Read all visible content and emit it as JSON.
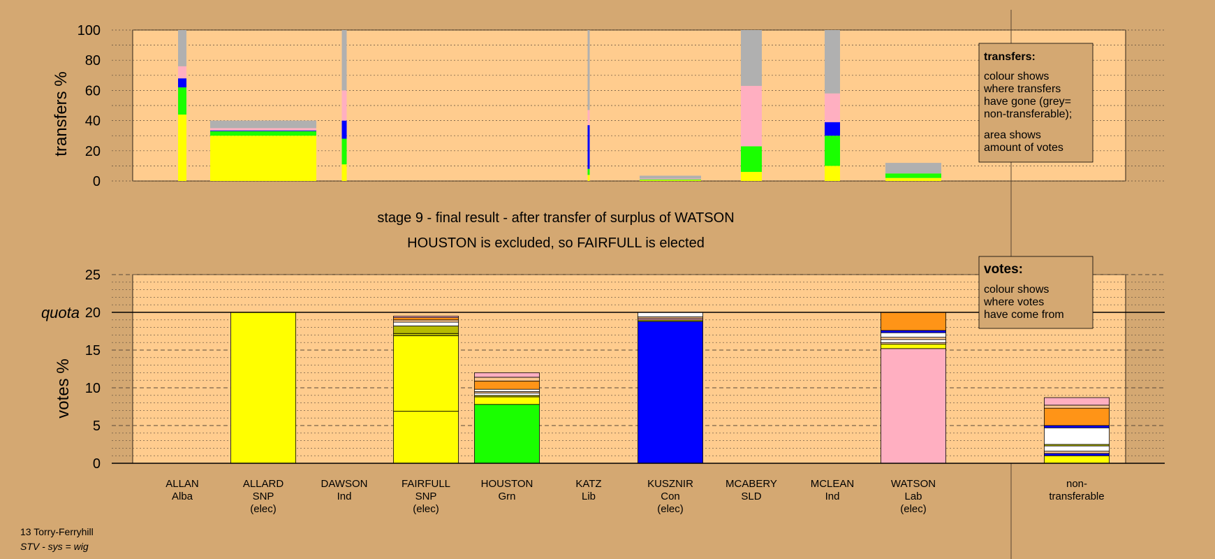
{
  "colors": {
    "background": "#d4a872",
    "plot_area": "#ffcc8e",
    "SNP": "#ffff00",
    "Grn": "#1aff00",
    "Con": "#0000ff",
    "Lab": "#ffafc1",
    "Ind": "#ffffff",
    "Lib": "#ff9417",
    "Alba": "#b7bb00",
    "SLD": "#ffc890",
    "nontransferable": "#b0b0b0"
  },
  "stage_title": "stage 9 - final result - after transfer of surplus of WATSON",
  "stage_subtitle": "HOUSTON is excluded, so FAIRFULL is elected",
  "footer": {
    "ward": "13 Torry-Ferryhill",
    "system": "STV - sys = wig"
  },
  "transfers_legend": {
    "title": "transfers:",
    "para1": [
      "colour shows",
      "where transfers",
      "have gone (grey=",
      "non-transferable);"
    ],
    "para2": [
      "area shows",
      "amount of votes"
    ]
  },
  "votes_legend": {
    "title": "votes:",
    "lines": [
      "colour shows",
      "where votes",
      "have come from"
    ]
  },
  "chart_data": [
    {
      "type": "bar",
      "name": "transfers",
      "ylabel": "transfers %",
      "ylim": [
        0,
        100
      ],
      "yticks": [
        0,
        20,
        40,
        60,
        80,
        100
      ],
      "note": "stacked bars; bar width shows amount of votes transferred",
      "bars": [
        {
          "candidate": "ALLAN",
          "segments": [
            {
              "party": "SNP",
              "value": 44
            },
            {
              "party": "Grn",
              "value": 18
            },
            {
              "party": "Con",
              "value": 6
            },
            {
              "party": "Lab",
              "value": 8
            },
            {
              "party": "nontransferable",
              "value": 24
            }
          ]
        },
        {
          "candidate": "ALLARD",
          "segments": [
            {
              "party": "SNP",
              "value": 30
            },
            {
              "party": "Grn",
              "value": 3
            },
            {
              "party": "Con",
              "value": 0.5
            },
            {
              "party": "Lab",
              "value": 1.5
            },
            {
              "party": "nontransferable",
              "value": 5
            }
          ]
        },
        {
          "candidate": "DAWSON",
          "segments": [
            {
              "party": "SNP",
              "value": 11
            },
            {
              "party": "Grn",
              "value": 17
            },
            {
              "party": "Con",
              "value": 12
            },
            {
              "party": "Lab",
              "value": 20
            },
            {
              "party": "nontransferable",
              "value": 40
            }
          ]
        },
        {
          "candidate": "KATZ",
          "segments": [
            {
              "party": "SNP",
              "value": 4
            },
            {
              "party": "Grn",
              "value": 4
            },
            {
              "party": "Con",
              "value": 29
            },
            {
              "party": "Lab",
              "value": 10
            },
            {
              "party": "nontransferable",
              "value": 53
            }
          ]
        },
        {
          "candidate": "KUSZNIR",
          "segments": [
            {
              "party": "SNP",
              "value": 0.5
            },
            {
              "party": "Grn",
              "value": 0.5
            },
            {
              "party": "Lab",
              "value": 0.5
            },
            {
              "party": "nontransferable",
              "value": 2
            }
          ]
        },
        {
          "candidate": "MCABERY",
          "segments": [
            {
              "party": "SNP",
              "value": 6
            },
            {
              "party": "Grn",
              "value": 17
            },
            {
              "party": "Lab",
              "value": 40
            },
            {
              "party": "nontransferable",
              "value": 37
            }
          ]
        },
        {
          "candidate": "MCLEAN",
          "segments": [
            {
              "party": "SNP",
              "value": 10
            },
            {
              "party": "Grn",
              "value": 20
            },
            {
              "party": "Con",
              "value": 9
            },
            {
              "party": "Lab",
              "value": 19
            },
            {
              "party": "nontransferable",
              "value": 42
            }
          ]
        },
        {
          "candidate": "WATSON",
          "segments": [
            {
              "party": "SNP",
              "value": 2
            },
            {
              "party": "Grn",
              "value": 3
            },
            {
              "party": "nontransferable",
              "value": 7
            }
          ]
        }
      ]
    },
    {
      "type": "bar",
      "name": "votes",
      "ylabel": "votes %",
      "ylim": [
        0,
        25
      ],
      "yticks": [
        0,
        5,
        10,
        15,
        20,
        25
      ],
      "quota": {
        "label": "quota",
        "value": 20
      },
      "candidates": [
        {
          "name": "ALLAN",
          "party": "Alba",
          "status": ""
        },
        {
          "name": "ALLARD",
          "party": "SNP",
          "status": "(elec)"
        },
        {
          "name": "DAWSON",
          "party": "Ind",
          "status": ""
        },
        {
          "name": "FAIRFULL",
          "party": "SNP",
          "status": "(elec)"
        },
        {
          "name": "HOUSTON",
          "party": "Grn",
          "status": ""
        },
        {
          "name": "KATZ",
          "party": "Lib",
          "status": ""
        },
        {
          "name": "KUSZNIR",
          "party": "Con",
          "status": "(elec)"
        },
        {
          "name": "MCABERY",
          "party": "SLD",
          "status": ""
        },
        {
          "name": "MCLEAN",
          "party": "Ind",
          "status": ""
        },
        {
          "name": "WATSON",
          "party": "Lab",
          "status": "(elec)"
        }
      ],
      "nontransferable_label": [
        "non-",
        "transferable"
      ],
      "bars": [
        {
          "candidate": "ALLAN",
          "segments": []
        },
        {
          "candidate": "ALLARD",
          "segments": [
            {
              "party": "SNP",
              "value": 20
            }
          ]
        },
        {
          "candidate": "DAWSON",
          "segments": []
        },
        {
          "candidate": "FAIRFULL",
          "segments": [
            {
              "party": "SNP",
              "value": 6.9
            },
            {
              "party": "SNP",
              "value": 10
            },
            {
              "party": "Alba",
              "value": 0.3
            },
            {
              "party": "Alba",
              "value": 1
            },
            {
              "party": "Ind",
              "value": 0.5
            },
            {
              "party": "SLD",
              "value": 0.3
            },
            {
              "party": "Lib",
              "value": 0.3
            },
            {
              "party": "Lab",
              "value": 0.2
            }
          ]
        },
        {
          "candidate": "HOUSTON",
          "segments": [
            {
              "party": "Grn",
              "value": 7.8
            },
            {
              "party": "SNP",
              "value": 1
            },
            {
              "party": "Alba",
              "value": 0.2
            },
            {
              "party": "Ind",
              "value": 0.3
            },
            {
              "party": "SLD",
              "value": 0.2
            },
            {
              "party": "Ind",
              "value": 0.3
            },
            {
              "party": "Lib",
              "value": 1.1
            },
            {
              "party": "SLD",
              "value": 0.5
            },
            {
              "party": "Lab",
              "value": 0.6
            }
          ]
        },
        {
          "candidate": "KATZ",
          "segments": []
        },
        {
          "candidate": "KUSZNIR",
          "segments": [
            {
              "party": "Con",
              "value": 18.8
            },
            {
              "party": "Alba",
              "value": 0.2
            },
            {
              "party": "Lab",
              "value": 0.2
            },
            {
              "party": "SLD",
              "value": 0.2
            },
            {
              "party": "Ind",
              "value": 0.6
            }
          ]
        },
        {
          "candidate": "MCABERY",
          "segments": []
        },
        {
          "candidate": "MCLEAN",
          "segments": []
        },
        {
          "candidate": "WATSON",
          "segments": [
            {
              "party": "Lab",
              "value": 15.2
            },
            {
              "party": "SNP",
              "value": 0.6
            },
            {
              "party": "SLD",
              "value": 0.2
            },
            {
              "party": "Ind",
              "value": 0.4
            },
            {
              "party": "SLD",
              "value": 0.3
            },
            {
              "party": "Ind",
              "value": 0.6
            },
            {
              "party": "Con",
              "value": 0.3
            },
            {
              "party": "Lib",
              "value": 2.4
            }
          ]
        },
        {
          "candidate": "non-transferable",
          "segments": [
            {
              "party": "SNP",
              "value": 1
            },
            {
              "party": "Con",
              "value": 0.3
            },
            {
              "party": "SLD",
              "value": 0.3
            },
            {
              "party": "Ind",
              "value": 0.7
            },
            {
              "party": "Alba",
              "value": 0.2
            },
            {
              "party": "Ind",
              "value": 2.2
            },
            {
              "party": "Con",
              "value": 0.3
            },
            {
              "party": "Lib",
              "value": 2.3
            },
            {
              "party": "SLD",
              "value": 0.4
            },
            {
              "party": "Lab",
              "value": 1
            }
          ]
        }
      ]
    }
  ]
}
